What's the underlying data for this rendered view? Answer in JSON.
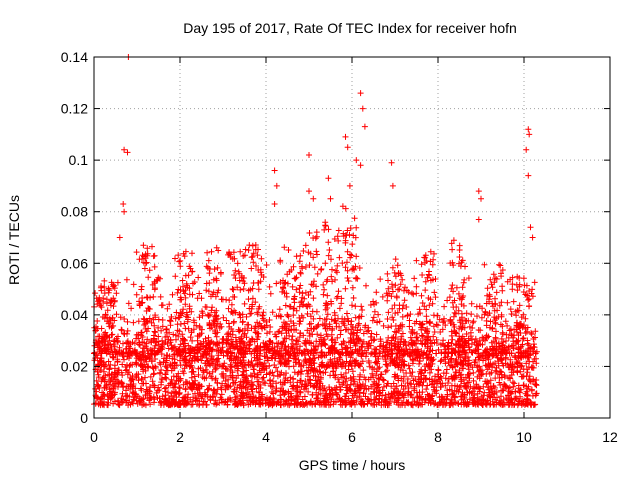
{
  "chart_data": {
    "type": "scatter",
    "title": "Day 195 of 2017, Rate Of TEC Index for receiver hofn",
    "xlabel": "GPS time / hours",
    "ylabel": "ROTI / TECUs",
    "xlim": [
      0,
      12
    ],
    "ylim": [
      0,
      0.14
    ],
    "x_ticks": [
      "0",
      "2",
      "4",
      "6",
      "8",
      "10",
      "12"
    ],
    "y_ticks": [
      "0",
      "0.02",
      "0.04",
      "0.06",
      "0.08",
      "0.1",
      "0.12",
      "0.14"
    ],
    "grid": true,
    "marker": "+",
    "color": "#ff0000",
    "series": [
      {
        "name": "ROTI",
        "x_range": [
          0,
          10.3
        ],
        "dense_band": [
          0.005,
          0.03
        ],
        "outlier_points": [
          {
            "x": 0.8,
            "y": 0.14
          },
          {
            "x": 0.7,
            "y": 0.104
          },
          {
            "x": 0.78,
            "y": 0.103
          },
          {
            "x": 0.68,
            "y": 0.083
          },
          {
            "x": 0.7,
            "y": 0.08
          },
          {
            "x": 0.6,
            "y": 0.07
          },
          {
            "x": 1.15,
            "y": 0.067
          },
          {
            "x": 1.2,
            "y": 0.062
          },
          {
            "x": 4.2,
            "y": 0.096
          },
          {
            "x": 4.25,
            "y": 0.09
          },
          {
            "x": 4.2,
            "y": 0.083
          },
          {
            "x": 5.0,
            "y": 0.102
          },
          {
            "x": 5.0,
            "y": 0.088
          },
          {
            "x": 5.1,
            "y": 0.085
          },
          {
            "x": 5.45,
            "y": 0.093
          },
          {
            "x": 5.5,
            "y": 0.085
          },
          {
            "x": 5.85,
            "y": 0.109
          },
          {
            "x": 5.9,
            "y": 0.105
          },
          {
            "x": 5.95,
            "y": 0.09
          },
          {
            "x": 6.1,
            "y": 0.1
          },
          {
            "x": 6.2,
            "y": 0.126
          },
          {
            "x": 6.25,
            "y": 0.12
          },
          {
            "x": 6.3,
            "y": 0.113
          },
          {
            "x": 6.2,
            "y": 0.098
          },
          {
            "x": 6.92,
            "y": 0.099
          },
          {
            "x": 6.95,
            "y": 0.09
          },
          {
            "x": 8.95,
            "y": 0.088
          },
          {
            "x": 9.0,
            "y": 0.085
          },
          {
            "x": 8.95,
            "y": 0.077
          },
          {
            "x": 10.1,
            "y": 0.112
          },
          {
            "x": 10.12,
            "y": 0.11
          },
          {
            "x": 10.05,
            "y": 0.104
          },
          {
            "x": 10.1,
            "y": 0.094
          },
          {
            "x": 10.15,
            "y": 0.074
          },
          {
            "x": 10.2,
            "y": 0.07
          }
        ],
        "activity_peaks": [
          {
            "x": 0.3,
            "y": 0.055
          },
          {
            "x": 1.2,
            "y": 0.067
          },
          {
            "x": 2.1,
            "y": 0.066
          },
          {
            "x": 2.8,
            "y": 0.07
          },
          {
            "x": 3.3,
            "y": 0.066
          },
          {
            "x": 3.8,
            "y": 0.069
          },
          {
            "x": 4.5,
            "y": 0.067
          },
          {
            "x": 5.0,
            "y": 0.075
          },
          {
            "x": 5.5,
            "y": 0.078
          },
          {
            "x": 6.0,
            "y": 0.085
          },
          {
            "x": 7.0,
            "y": 0.062
          },
          {
            "x": 7.7,
            "y": 0.065
          },
          {
            "x": 8.5,
            "y": 0.069
          },
          {
            "x": 9.3,
            "y": 0.06
          },
          {
            "x": 9.9,
            "y": 0.055
          }
        ]
      }
    ]
  }
}
